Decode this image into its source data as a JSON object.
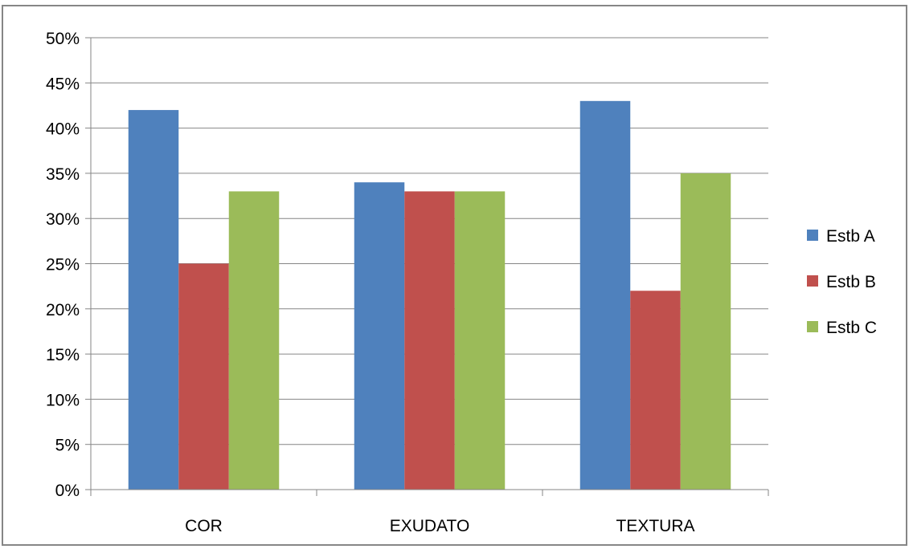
{
  "chart_data": {
    "type": "bar",
    "title": "",
    "xlabel": "",
    "ylabel": "",
    "categories": [
      "COR",
      "EXUDATO",
      "TEXTURA"
    ],
    "series": [
      {
        "name": "Estb A",
        "color": "#4F81BD",
        "values": [
          0.42,
          0.34,
          0.43
        ]
      },
      {
        "name": "Estb B",
        "color": "#C0504D",
        "values": [
          0.25,
          0.33,
          0.22
        ]
      },
      {
        "name": "Estb C",
        "color": "#9BBB59",
        "values": [
          0.33,
          0.33,
          0.35
        ]
      }
    ],
    "ylim": [
      0,
      0.5
    ],
    "y_ticks": [
      "0%",
      "5%",
      "10%",
      "15%",
      "20%",
      "25%",
      "30%",
      "35%",
      "40%",
      "45%",
      "50%"
    ],
    "grid": true,
    "legend_position": "right"
  }
}
